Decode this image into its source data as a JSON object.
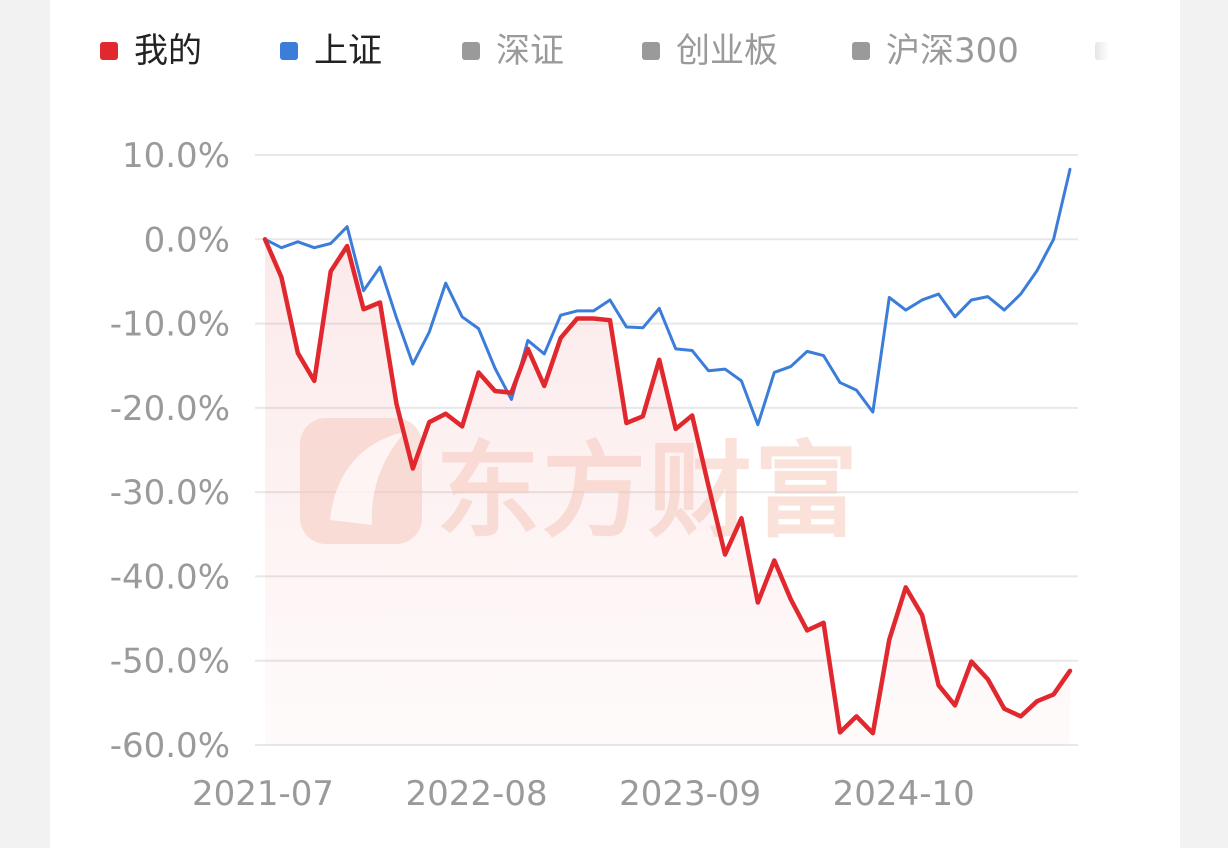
{
  "colors": {
    "mine": "#e0282e",
    "shanghai": "#3b7dd8",
    "inactive": "#9a9a9a",
    "grid": "#e8e8e8",
    "axis_text": "#9a9a9a",
    "legend_text_active": "#222222",
    "legend_text_inactive": "#9a9a9a",
    "watermark": "#f6c9bd"
  },
  "watermark": {
    "text": "东方财富"
  },
  "legend": [
    {
      "label": "我的",
      "active": true,
      "color": "#e0282e"
    },
    {
      "label": "上证",
      "active": true,
      "color": "#3b7dd8"
    },
    {
      "label": "深证",
      "active": false,
      "color": "#9a9a9a"
    },
    {
      "label": "创业板",
      "active": false,
      "color": "#9a9a9a"
    },
    {
      "label": "沪深300",
      "active": false,
      "color": "#9a9a9a"
    }
  ],
  "chart_data": {
    "type": "line",
    "xlabel": "",
    "ylabel": "",
    "ylim": [
      -60,
      10
    ],
    "y_ticks": [
      "10.0%",
      "0.0%",
      "-10.0%",
      "-20.0%",
      "-30.0%",
      "-40.0%",
      "-50.0%",
      "-60.0%"
    ],
    "x_tick_labels": [
      "2021-07",
      "2022-08",
      "2023-09",
      "2024-10"
    ],
    "x_tick_index": [
      0,
      13,
      26,
      39
    ],
    "grid": true,
    "legend_position": "top",
    "area_fill_series": "我的",
    "series": [
      {
        "name": "我的",
        "color": "#e0282e",
        "values": [
          0,
          -4.5,
          -13.5,
          -16.8,
          -3.8,
          -0.8,
          -8.3,
          -7.5,
          -19.5,
          -27.2,
          -21.7,
          -20.7,
          -22.2,
          -15.8,
          -18.0,
          -18.2,
          -13.0,
          -17.4,
          -11.7,
          -9.4,
          -9.4,
          -9.6,
          -21.8,
          -21.0,
          -14.3,
          -22.5,
          -20.9,
          -29.3,
          -37.4,
          -33.1,
          -43.1,
          -38.1,
          -42.7,
          -46.4,
          -45.5,
          -58.5,
          -56.6,
          -58.6,
          -47.5,
          -41.3,
          -44.6,
          -52.9,
          -55.3,
          -50.1,
          -52.2,
          -55.7,
          -56.6,
          -54.8,
          -54.0,
          -51.2
        ]
      },
      {
        "name": "上证",
        "color": "#3b7dd8",
        "values": [
          0,
          -1.0,
          -0.3,
          -1.0,
          -0.5,
          1.5,
          -6.1,
          -3.3,
          -9.3,
          -14.8,
          -11.0,
          -5.2,
          -9.2,
          -10.6,
          -15.3,
          -19.0,
          -12.0,
          -13.6,
          -9.0,
          -8.5,
          -8.5,
          -7.2,
          -10.4,
          -10.5,
          -8.2,
          -13.0,
          -13.2,
          -15.6,
          -15.4,
          -16.8,
          -22.0,
          -15.8,
          -15.1,
          -13.3,
          -13.8,
          -17.0,
          -17.9,
          -20.5,
          -6.9,
          -8.4,
          -7.2,
          -6.5,
          -9.2,
          -7.2,
          -6.8,
          -8.4,
          -6.5,
          -3.7,
          0.0,
          8.3
        ]
      }
    ]
  }
}
